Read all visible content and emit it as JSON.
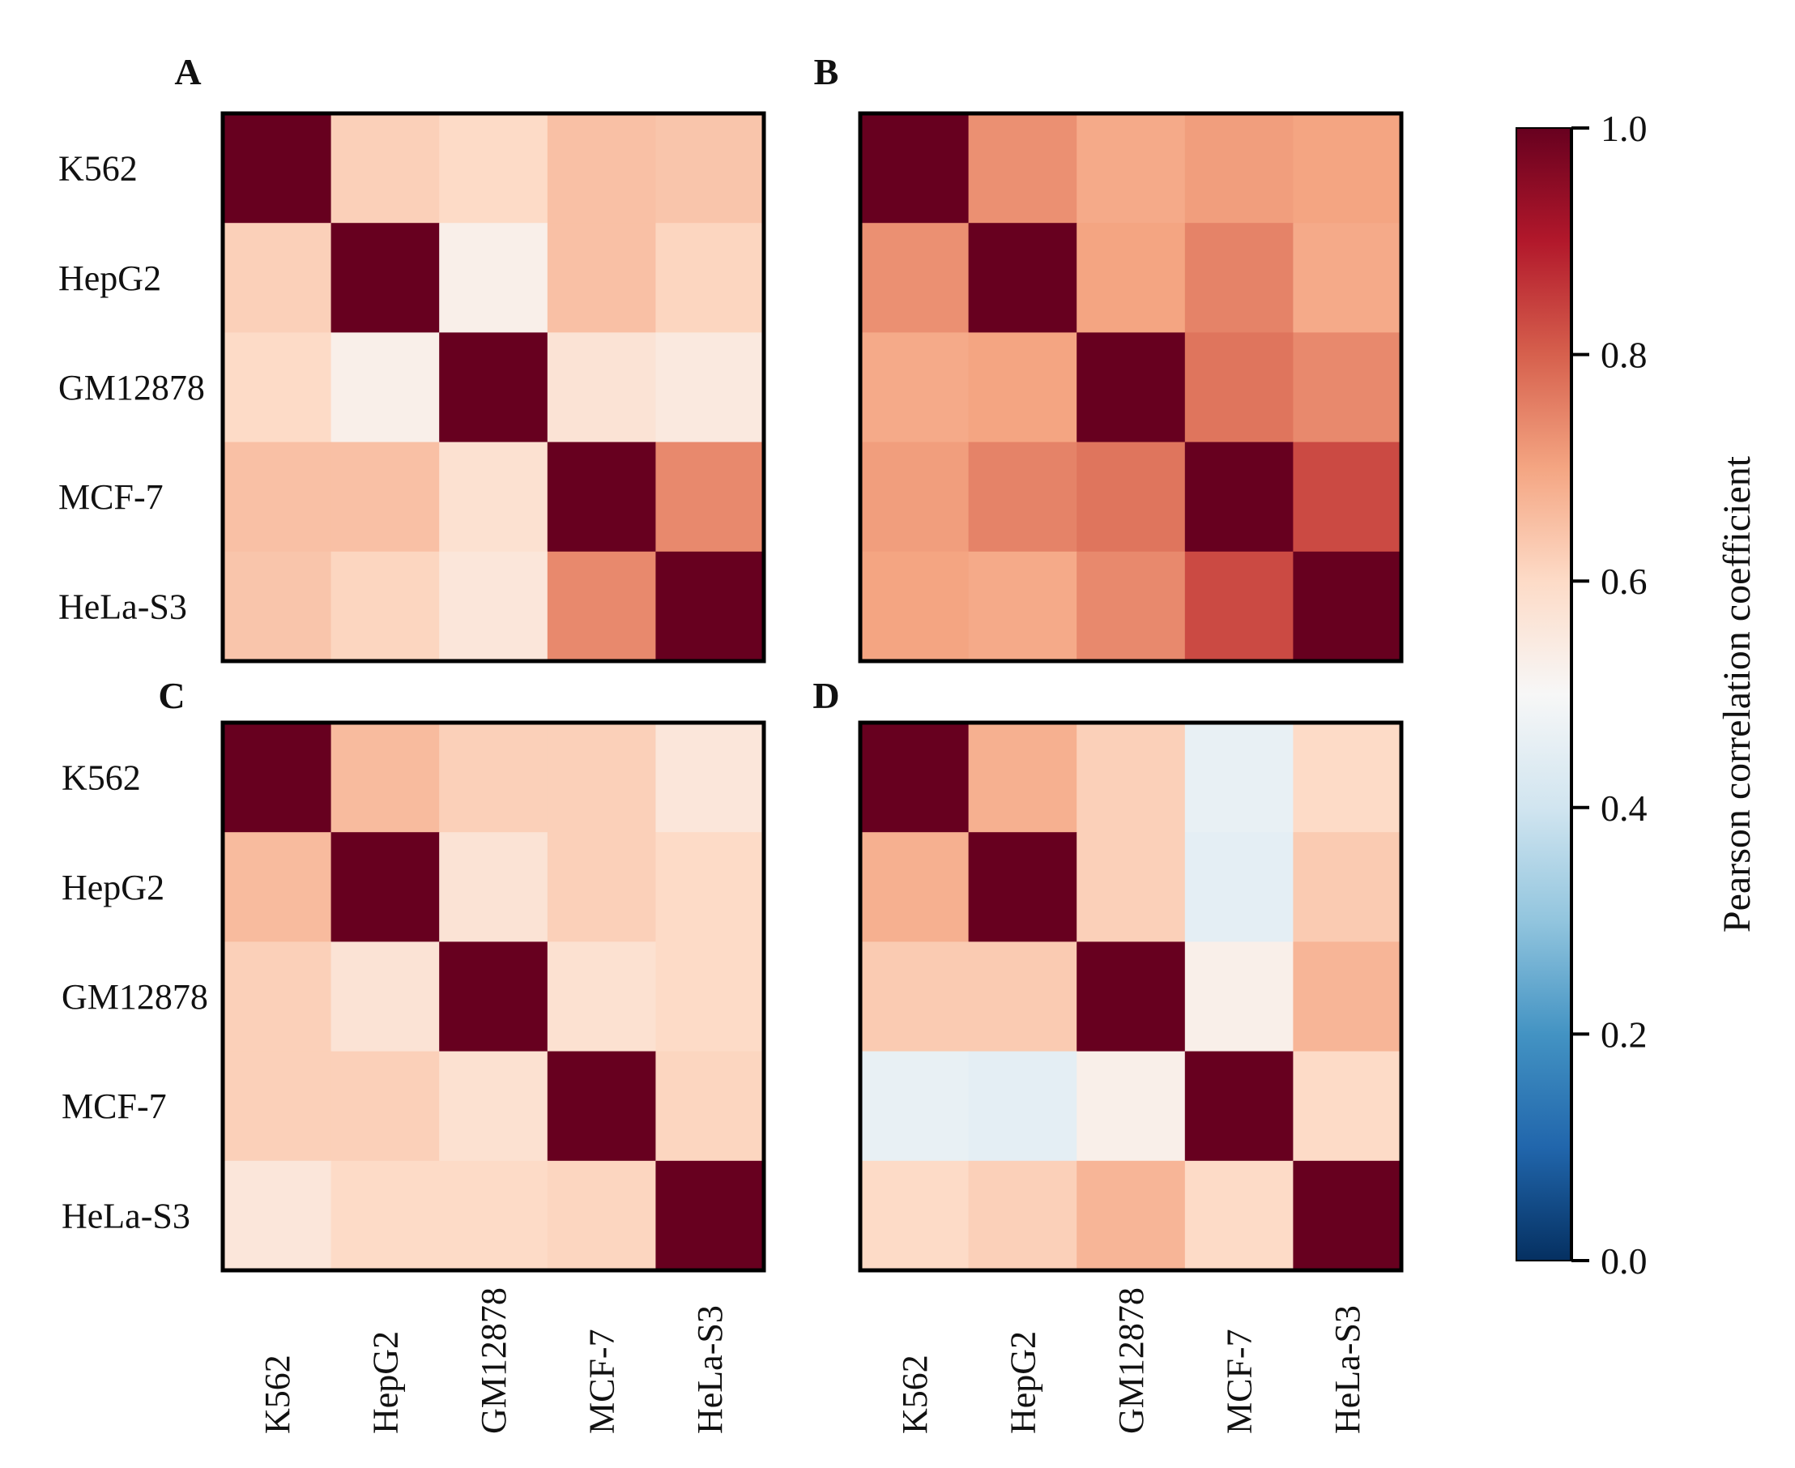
{
  "chart_data": [
    {
      "panel": "A",
      "type": "heatmap",
      "row_labels": [
        "K562",
        "HepG2",
        "GM12878",
        "MCF-7",
        "HeLa-S3"
      ],
      "col_labels": [],
      "values": [
        [
          1.0,
          0.62,
          0.6,
          0.65,
          0.64
        ],
        [
          0.62,
          1.0,
          0.53,
          0.65,
          0.61
        ],
        [
          0.6,
          0.53,
          1.0,
          0.57,
          0.55
        ],
        [
          0.65,
          0.65,
          0.58,
          1.0,
          0.74
        ],
        [
          0.64,
          0.61,
          0.56,
          0.74,
          1.0
        ]
      ]
    },
    {
      "panel": "B",
      "type": "heatmap",
      "row_labels": [],
      "col_labels": [],
      "values": [
        [
          1.0,
          0.73,
          0.69,
          0.71,
          0.7
        ],
        [
          0.73,
          1.0,
          0.7,
          0.75,
          0.69
        ],
        [
          0.69,
          0.7,
          1.0,
          0.77,
          0.74
        ],
        [
          0.71,
          0.75,
          0.77,
          1.0,
          0.83
        ],
        [
          0.7,
          0.69,
          0.74,
          0.83,
          1.0
        ]
      ]
    },
    {
      "panel": "C",
      "type": "heatmap",
      "row_labels": [
        "K562",
        "HepG2",
        "GM12878",
        "MCF-7",
        "HeLa-S3"
      ],
      "col_labels": [
        "K562",
        "HepG2",
        "GM12878",
        "MCF-7",
        "HeLa-S3"
      ],
      "values": [
        [
          1.0,
          0.66,
          0.62,
          0.62,
          0.56
        ],
        [
          0.66,
          1.0,
          0.57,
          0.62,
          0.6
        ],
        [
          0.62,
          0.57,
          1.0,
          0.58,
          0.6
        ],
        [
          0.62,
          0.62,
          0.58,
          1.0,
          0.61
        ],
        [
          0.56,
          0.6,
          0.6,
          0.61,
          1.0
        ]
      ]
    },
    {
      "panel": "D",
      "type": "heatmap",
      "row_labels": [],
      "col_labels": [
        "K562",
        "HepG2",
        "GM12878",
        "MCF-7",
        "HeLa-S3"
      ],
      "values": [
        [
          1.0,
          0.68,
          0.62,
          0.46,
          0.6
        ],
        [
          0.68,
          1.0,
          0.62,
          0.45,
          0.63
        ],
        [
          0.63,
          0.63,
          1.0,
          0.53,
          0.67
        ],
        [
          0.46,
          0.45,
          0.53,
          1.0,
          0.6
        ],
        [
          0.6,
          0.62,
          0.67,
          0.6,
          1.0
        ]
      ]
    }
  ],
  "colorbar": {
    "label": "Pearson correlation coefficient",
    "min": 0.0,
    "max": 1.0,
    "tick_values": [
      0.0,
      0.2,
      0.4,
      0.6,
      0.8,
      1.0
    ],
    "tick_labels": [
      "0.0",
      "0.2",
      "0.4",
      "0.6",
      "0.8",
      "1.0"
    ],
    "colormap": "RdBu_r",
    "stops": [
      "#053061",
      "#2166ac",
      "#4393c3",
      "#92c5de",
      "#d1e5f0",
      "#f7f7f7",
      "#fddbc7",
      "#f4a582",
      "#d6604d",
      "#b2182b",
      "#67001f"
    ]
  }
}
